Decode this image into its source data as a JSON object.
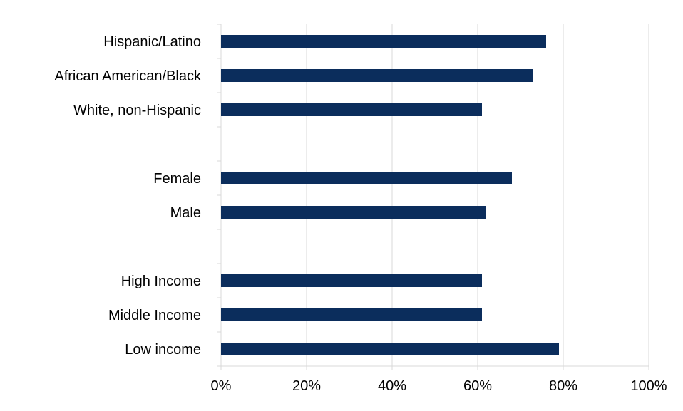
{
  "chart_data": {
    "type": "bar",
    "orientation": "horizontal",
    "categories": [
      "Hispanic/Latino",
      "African American/Black",
      "White, non-Hispanic",
      "",
      "Female",
      "Male",
      "",
      "High Income",
      "Middle Income",
      "Low income"
    ],
    "values": [
      76,
      73,
      61,
      null,
      68,
      62,
      null,
      61,
      61,
      79
    ],
    "xlim": [
      0,
      100
    ],
    "x_ticks": [
      "0%",
      "20%",
      "40%",
      "60%",
      "80%",
      "100%"
    ],
    "x_tick_values": [
      0,
      20,
      40,
      60,
      80,
      100
    ],
    "title": "",
    "xlabel": "",
    "ylabel": "",
    "grid": "vertical",
    "legend": "none",
    "bar_color": "#0b2d5c",
    "grid_color": "#d9d9d9"
  }
}
